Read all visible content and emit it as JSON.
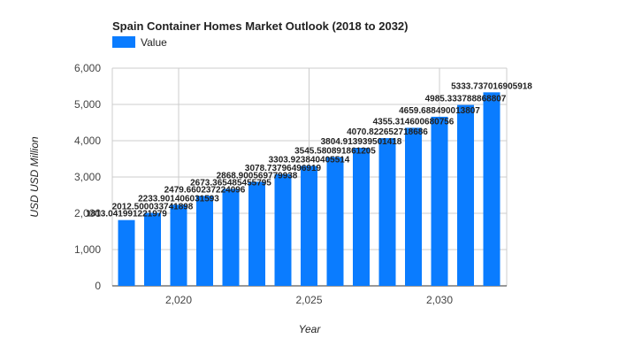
{
  "chart_data": {
    "type": "bar",
    "title": "Spain Container Homes Market Outlook (2018 to 2032)",
    "xlabel": "Year",
    "ylabel": "USD USD Million",
    "legend": {
      "position": "top-left",
      "entries": [
        "Value"
      ]
    },
    "grid": true,
    "bar_color": "#0a7cff",
    "x": [
      2018,
      2019,
      2020,
      2021,
      2022,
      2023,
      2024,
      2025,
      2026,
      2027,
      2028,
      2029,
      2030,
      2031,
      2032
    ],
    "x_ticks": [
      2020,
      2025,
      2030
    ],
    "x_tick_labels": [
      "2,020",
      "2,025",
      "2,030"
    ],
    "y_ticks": [
      0,
      1000,
      2000,
      3000,
      4000,
      5000,
      6000
    ],
    "y_tick_labels": [
      "0",
      "1,000",
      "2,000",
      "3,000",
      "4,000",
      "5,000",
      "6,000"
    ],
    "ylim": [
      0,
      6000
    ],
    "series": [
      {
        "name": "Value",
        "values": [
          1813.041991221979,
          2012.500033741898,
          2233.901406031593,
          2479.660237224096,
          2673.365485455795,
          2868.900569779938,
          3078.73796496919,
          3303.923840405514,
          3545.580891861205,
          3804.913939501418,
          4070.822652718686,
          4355.314600680756,
          4659.688490013807,
          4985.333788868807,
          5333.737016905918
        ],
        "labels": [
          "1813.041991221979",
          "2012.500033741898",
          "2233.901406031593",
          "2479.660237224096",
          "2673.365485455795",
          "2868.900569779938",
          "3078.73796496919",
          "3303.923840405514",
          "3545.580891861205",
          "3804.913939501418",
          "4070.822652718686",
          "4355.314600680756",
          "4659.688490013807",
          "4985.333788868807",
          "5333.737016905918"
        ]
      }
    ]
  }
}
